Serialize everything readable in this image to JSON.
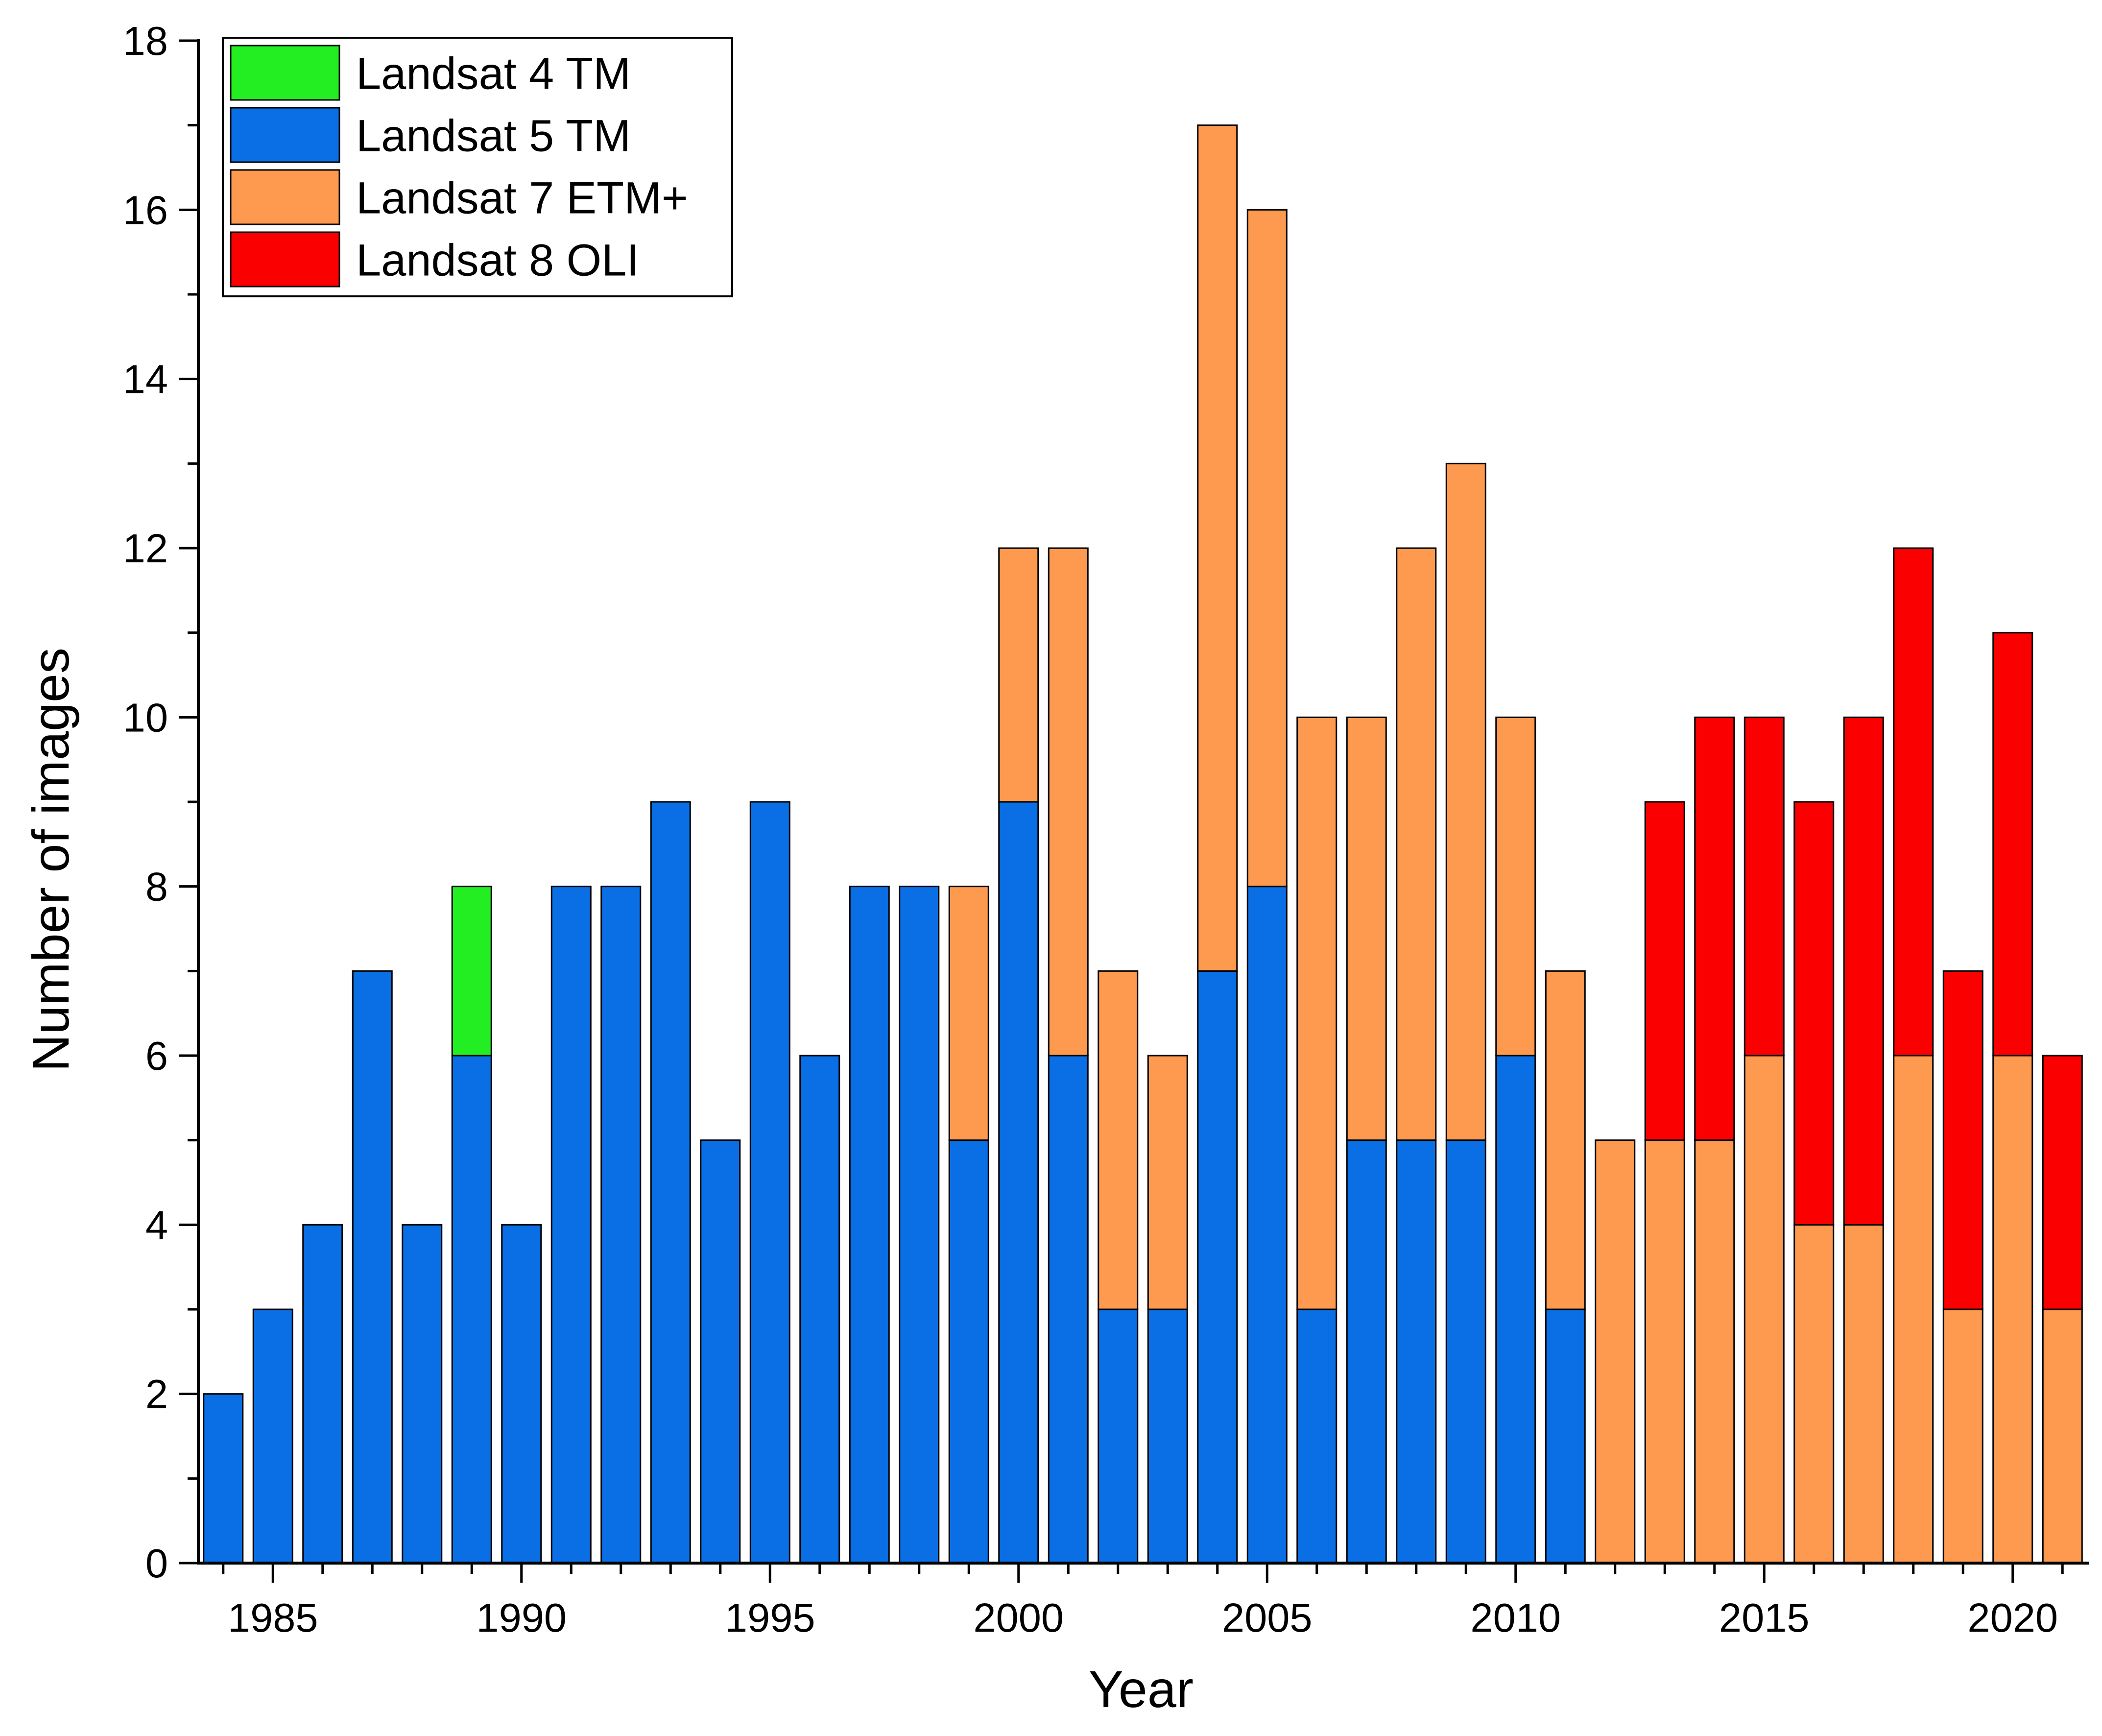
{
  "chart_data": {
    "type": "bar",
    "stacked": true,
    "title": "",
    "xlabel": "Year",
    "ylabel": "Number of images",
    "ylim": [
      0,
      18
    ],
    "xlim": [
      1983.5,
      2021.5
    ],
    "grid": false,
    "legend_position": "top-left",
    "x_ticks": [
      1985,
      1990,
      1995,
      2000,
      2005,
      2010,
      2015,
      2020
    ],
    "y_ticks": [
      0,
      2,
      4,
      6,
      8,
      10,
      12,
      14,
      16,
      18
    ],
    "categories": [
      1984,
      1985,
      1986,
      1987,
      1988,
      1989,
      1990,
      1991,
      1992,
      1993,
      1994,
      1995,
      1996,
      1997,
      1998,
      1999,
      2000,
      2001,
      2002,
      2003,
      2004,
      2005,
      2006,
      2007,
      2008,
      2009,
      2010,
      2011,
      2012,
      2013,
      2014,
      2015,
      2016,
      2017,
      2018,
      2019,
      2020,
      2021
    ],
    "series": [
      {
        "name": "Landsat 4 TM",
        "color": "#22ee22",
        "values": [
          0,
          0,
          0,
          0,
          0,
          2,
          0,
          0,
          0,
          0,
          0,
          0,
          0,
          0,
          0,
          0,
          0,
          0,
          0,
          0,
          0,
          0,
          0,
          0,
          0,
          0,
          0,
          0,
          0,
          0,
          0,
          0,
          0,
          0,
          0,
          0,
          0,
          0
        ]
      },
      {
        "name": "Landsat 5 TM",
        "color": "#0a6fe4",
        "values": [
          2,
          3,
          4,
          7,
          4,
          6,
          4,
          8,
          8,
          9,
          5,
          9,
          6,
          8,
          8,
          5,
          9,
          6,
          3,
          3,
          7,
          8,
          3,
          5,
          5,
          5,
          6,
          3,
          0,
          0,
          0,
          0,
          0,
          0,
          0,
          0,
          0,
          0
        ]
      },
      {
        "name": "Landsat 7 ETM+",
        "color": "#fd9a4f",
        "values": [
          0,
          0,
          0,
          0,
          0,
          0,
          0,
          0,
          0,
          0,
          0,
          0,
          0,
          0,
          0,
          3,
          3,
          6,
          4,
          3,
          10,
          8,
          7,
          5,
          7,
          8,
          4,
          4,
          5,
          5,
          5,
          6,
          4,
          4,
          6,
          3,
          6,
          3
        ]
      },
      {
        "name": "Landsat 8 OLI",
        "color": "#fb0000",
        "values": [
          0,
          0,
          0,
          0,
          0,
          0,
          0,
          0,
          0,
          0,
          0,
          0,
          0,
          0,
          0,
          0,
          0,
          0,
          0,
          0,
          0,
          0,
          0,
          0,
          0,
          0,
          0,
          0,
          0,
          4,
          5,
          4,
          5,
          6,
          6,
          4,
          5,
          3
        ]
      }
    ],
    "stack_order": [
      "Landsat 5 TM",
      "Landsat 7 ETM+",
      "Landsat 8 OLI",
      "Landsat 4 TM"
    ],
    "legend_order": [
      "Landsat 4 TM",
      "Landsat 5 TM",
      "Landsat 7 ETM+",
      "Landsat 8 OLI"
    ]
  }
}
